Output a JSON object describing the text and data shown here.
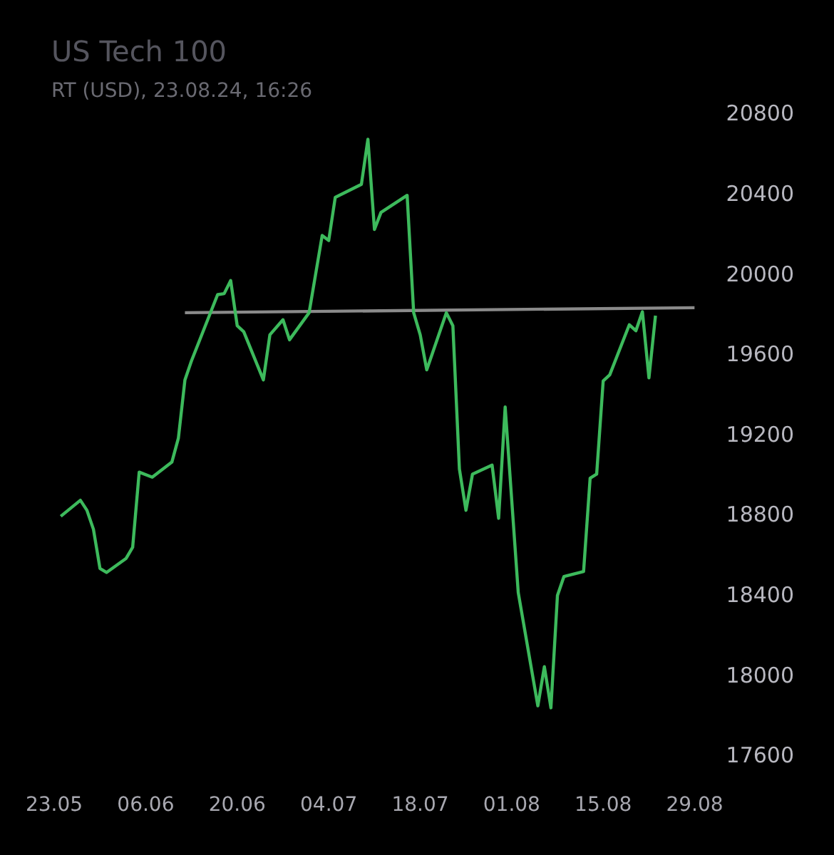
{
  "chart_data": {
    "type": "line",
    "title": "US Tech 100",
    "subtitle": "RT (USD), 23.08.24, 16:26",
    "xlim": [
      "--05-23",
      "--08-29"
    ],
    "xticks": [
      {
        "value": "--05-23",
        "label": "23.05"
      },
      {
        "value": "--06-06",
        "label": "06.06"
      },
      {
        "value": "--06-20",
        "label": "20.06"
      },
      {
        "value": "--07-04",
        "label": "04.07"
      },
      {
        "value": "--07-18",
        "label": "18.07"
      },
      {
        "value": "--08-01",
        "label": "01.08"
      },
      {
        "value": "--08-15",
        "label": "15.08"
      },
      {
        "value": "--08-29",
        "label": "29.08"
      }
    ],
    "ylim": [
      17600,
      20800
    ],
    "yticks": [
      17600,
      18000,
      18400,
      18800,
      19200,
      19600,
      20000,
      20400,
      20800
    ],
    "grid": false,
    "legend": false,
    "marker": "none",
    "series": [
      {
        "color": "#3dba5c",
        "x": [
          "--05-24",
          "--05-27",
          "--05-28",
          "--05-29",
          "--05-30",
          "--05-31",
          "--06-03",
          "--06-04",
          "--06-05",
          "--06-07",
          "--06-10",
          "--06-11",
          "--06-12",
          "--06-13",
          "--06-17",
          "--06-18",
          "--06-19",
          "--06-20",
          "--06-21",
          "--06-24",
          "--06-25",
          "--06-27",
          "--06-28",
          "--07-01",
          "--07-03",
          "--07-04",
          "--07-05",
          "--07-09",
          "--07-10",
          "--07-11",
          "--07-12",
          "--07-16",
          "--07-17",
          "--07-18",
          "--07-19",
          "--07-22",
          "--07-23",
          "--07-24",
          "--07-25",
          "--07-26",
          "--07-29",
          "--07-30",
          "--07-31",
          "--08-02",
          "--08-05",
          "--08-06",
          "--08-07",
          "--08-08",
          "--08-09",
          "--08-12",
          "--08-13",
          "--08-14",
          "--08-15",
          "--08-16",
          "--08-19",
          "--08-20",
          "--08-21",
          "--08-22",
          "--08-23"
        ],
        "values": [
          18800,
          18880,
          18830,
          18735,
          18540,
          18520,
          18590,
          18645,
          19020,
          18995,
          19070,
          19190,
          19480,
          19575,
          19905,
          19910,
          19975,
          19750,
          19720,
          19480,
          19705,
          19780,
          19680,
          19815,
          20200,
          20175,
          20390,
          20455,
          20680,
          20230,
          20315,
          20400,
          19815,
          19705,
          19530,
          19815,
          19750,
          19035,
          18830,
          19010,
          19055,
          18790,
          19345,
          18420,
          17855,
          18050,
          17845,
          18405,
          18500,
          18525,
          18990,
          19010,
          19475,
          19505,
          19755,
          19725,
          19820,
          19490,
          19800
        ]
      },
      {
        "color": "#8a8a8a",
        "x": [
          "--06-12",
          "--08-29"
        ],
        "values": [
          19815,
          19840
        ]
      }
    ]
  }
}
